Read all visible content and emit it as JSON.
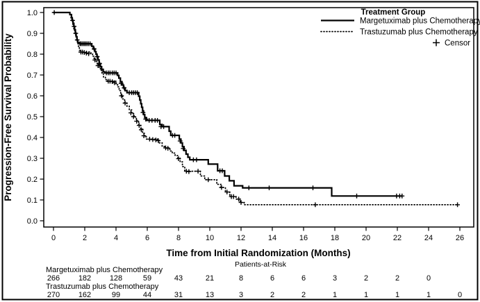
{
  "figure": {
    "background": "#ffffff",
    "line_color": "#000000",
    "border_color": "#000000"
  },
  "chart_data": {
    "type": "line",
    "subtype": "kaplan-meier-step",
    "title": "",
    "xlabel": "Time from Initial Randomization (Months)",
    "ylabel": "Progression-Free Survival Probability",
    "xlim": [
      0,
      26
    ],
    "ylim": [
      0.0,
      1.0
    ],
    "xticks": [
      0,
      2,
      4,
      6,
      8,
      10,
      12,
      14,
      16,
      18,
      20,
      22,
      24,
      26
    ],
    "ytick_labels": [
      "0.0",
      "0.1",
      "0.2",
      "0.3",
      "0.4",
      "0.5",
      "0.6",
      "0.7",
      "0.8",
      "0.9",
      "1.0"
    ],
    "grid": "off",
    "legend": {
      "position": "top-right",
      "title": "Treatment Group",
      "entries": [
        {
          "label": "Margetuximab plus Chemotherapy",
          "style": "solid"
        },
        {
          "label": "Trastuzumab plus Chemotherapy",
          "style": "dotted"
        }
      ],
      "censor_symbol": "+",
      "censor_label": "Censor"
    },
    "series": [
      {
        "name": "Margetuximab plus Chemotherapy",
        "style": "solid",
        "color": "#000000",
        "end_month": 22.3,
        "steps": [
          [
            0,
            1.0
          ],
          [
            1.05,
            0.99
          ],
          [
            1.15,
            0.975
          ],
          [
            1.2,
            0.962
          ],
          [
            1.25,
            0.948
          ],
          [
            1.3,
            0.933
          ],
          [
            1.35,
            0.917
          ],
          [
            1.4,
            0.9
          ],
          [
            1.45,
            0.884
          ],
          [
            1.5,
            0.868
          ],
          [
            1.55,
            0.856
          ],
          [
            1.62,
            0.85
          ],
          [
            2.45,
            0.838
          ],
          [
            2.55,
            0.825
          ],
          [
            2.65,
            0.812
          ],
          [
            2.72,
            0.8
          ],
          [
            2.78,
            0.788
          ],
          [
            2.85,
            0.772
          ],
          [
            2.92,
            0.755
          ],
          [
            3.0,
            0.74
          ],
          [
            3.08,
            0.727
          ],
          [
            3.18,
            0.715
          ],
          [
            3.28,
            0.71
          ],
          [
            4.1,
            0.698
          ],
          [
            4.18,
            0.685
          ],
          [
            4.28,
            0.668
          ],
          [
            4.38,
            0.652
          ],
          [
            4.48,
            0.638
          ],
          [
            4.58,
            0.625
          ],
          [
            4.7,
            0.615
          ],
          [
            5.45,
            0.598
          ],
          [
            5.52,
            0.58
          ],
          [
            5.58,
            0.562
          ],
          [
            5.64,
            0.545
          ],
          [
            5.7,
            0.528
          ],
          [
            5.76,
            0.51
          ],
          [
            5.84,
            0.495
          ],
          [
            5.95,
            0.482
          ],
          [
            6.8,
            0.462
          ],
          [
            6.95,
            0.452
          ],
          [
            7.4,
            0.43
          ],
          [
            7.5,
            0.41
          ],
          [
            8.05,
            0.392
          ],
          [
            8.15,
            0.374
          ],
          [
            8.25,
            0.356
          ],
          [
            8.35,
            0.338
          ],
          [
            8.48,
            0.32
          ],
          [
            8.6,
            0.305
          ],
          [
            8.72,
            0.293
          ],
          [
            9.9,
            0.272
          ],
          [
            10.5,
            0.24
          ],
          [
            10.95,
            0.215
          ],
          [
            11.25,
            0.192
          ],
          [
            11.55,
            0.168
          ],
          [
            12.1,
            0.158
          ],
          [
            17.8,
            0.119
          ]
        ],
        "censors": [
          [
            0.05,
            1.0
          ],
          [
            1.22,
            0.962
          ],
          [
            1.32,
            0.933
          ],
          [
            1.42,
            0.9
          ],
          [
            1.52,
            0.868
          ],
          [
            1.7,
            0.85
          ],
          [
            1.78,
            0.85
          ],
          [
            1.87,
            0.85
          ],
          [
            1.96,
            0.85
          ],
          [
            2.05,
            0.85
          ],
          [
            2.14,
            0.85
          ],
          [
            2.24,
            0.85
          ],
          [
            2.34,
            0.85
          ],
          [
            2.6,
            0.825
          ],
          [
            2.8,
            0.788
          ],
          [
            2.95,
            0.755
          ],
          [
            3.38,
            0.71
          ],
          [
            3.5,
            0.71
          ],
          [
            3.62,
            0.71
          ],
          [
            3.76,
            0.71
          ],
          [
            3.88,
            0.71
          ],
          [
            4.0,
            0.71
          ],
          [
            4.33,
            0.66
          ],
          [
            4.52,
            0.638
          ],
          [
            4.85,
            0.615
          ],
          [
            5.0,
            0.615
          ],
          [
            5.12,
            0.615
          ],
          [
            5.24,
            0.615
          ],
          [
            5.36,
            0.615
          ],
          [
            5.73,
            0.52
          ],
          [
            5.9,
            0.488
          ],
          [
            6.12,
            0.482
          ],
          [
            6.3,
            0.482
          ],
          [
            6.5,
            0.482
          ],
          [
            6.65,
            0.482
          ],
          [
            6.88,
            0.452
          ],
          [
            7.05,
            0.452
          ],
          [
            7.62,
            0.41
          ],
          [
            7.76,
            0.41
          ],
          [
            8.1,
            0.383
          ],
          [
            8.3,
            0.347
          ],
          [
            8.95,
            0.293
          ],
          [
            9.15,
            0.293
          ],
          [
            10.65,
            0.24
          ],
          [
            10.8,
            0.24
          ],
          [
            12.5,
            0.158
          ],
          [
            13.8,
            0.158
          ],
          [
            16.6,
            0.158
          ],
          [
            19.4,
            0.119
          ],
          [
            21.95,
            0.119
          ],
          [
            22.15,
            0.119
          ],
          [
            22.3,
            0.119
          ]
        ]
      },
      {
        "name": "Trastuzumab plus Chemotherapy",
        "style": "dotted",
        "color": "#000000",
        "end_month": 25.85,
        "steps": [
          [
            0,
            1.0
          ],
          [
            1.05,
            0.99
          ],
          [
            1.12,
            0.975
          ],
          [
            1.18,
            0.958
          ],
          [
            1.24,
            0.94
          ],
          [
            1.3,
            0.922
          ],
          [
            1.36,
            0.904
          ],
          [
            1.42,
            0.886
          ],
          [
            1.48,
            0.868
          ],
          [
            1.54,
            0.85
          ],
          [
            1.6,
            0.833
          ],
          [
            1.66,
            0.818
          ],
          [
            1.72,
            0.81
          ],
          [
            2.4,
            0.8
          ],
          [
            2.5,
            0.79
          ],
          [
            2.6,
            0.778
          ],
          [
            2.7,
            0.765
          ],
          [
            2.8,
            0.752
          ],
          [
            2.9,
            0.738
          ],
          [
            3.0,
            0.722
          ],
          [
            3.1,
            0.705
          ],
          [
            3.2,
            0.69
          ],
          [
            3.32,
            0.678
          ],
          [
            3.45,
            0.67
          ],
          [
            4.0,
            0.658
          ],
          [
            4.1,
            0.643
          ],
          [
            4.2,
            0.625
          ],
          [
            4.3,
            0.605
          ],
          [
            4.42,
            0.585
          ],
          [
            4.55,
            0.567
          ],
          [
            4.7,
            0.55
          ],
          [
            4.85,
            0.532
          ],
          [
            5.0,
            0.515
          ],
          [
            5.15,
            0.498
          ],
          [
            5.3,
            0.48
          ],
          [
            5.45,
            0.46
          ],
          [
            5.58,
            0.44
          ],
          [
            5.7,
            0.42
          ],
          [
            5.82,
            0.403
          ],
          [
            5.95,
            0.392
          ],
          [
            6.75,
            0.374
          ],
          [
            6.95,
            0.357
          ],
          [
            7.1,
            0.35
          ],
          [
            7.45,
            0.335
          ],
          [
            7.6,
            0.325
          ],
          [
            7.78,
            0.313
          ],
          [
            7.95,
            0.3
          ],
          [
            8.1,
            0.283
          ],
          [
            8.25,
            0.26
          ],
          [
            8.4,
            0.238
          ],
          [
            9.4,
            0.215
          ],
          [
            9.68,
            0.197
          ],
          [
            10.45,
            0.175
          ],
          [
            10.7,
            0.16
          ],
          [
            11.0,
            0.138
          ],
          [
            11.28,
            0.116
          ],
          [
            11.68,
            0.104
          ],
          [
            11.95,
            0.088
          ],
          [
            12.2,
            0.077
          ]
        ],
        "censors": [
          [
            1.75,
            0.81
          ],
          [
            1.85,
            0.81
          ],
          [
            1.97,
            0.808
          ],
          [
            2.1,
            0.805
          ],
          [
            2.25,
            0.802
          ],
          [
            2.65,
            0.772
          ],
          [
            2.85,
            0.745
          ],
          [
            3.5,
            0.67
          ],
          [
            3.62,
            0.67
          ],
          [
            3.76,
            0.668
          ],
          [
            3.9,
            0.663
          ],
          [
            4.35,
            0.6
          ],
          [
            4.58,
            0.565
          ],
          [
            4.95,
            0.518
          ],
          [
            5.12,
            0.5
          ],
          [
            5.32,
            0.478
          ],
          [
            5.48,
            0.458
          ],
          [
            5.62,
            0.437
          ],
          [
            5.78,
            0.408
          ],
          [
            6.15,
            0.392
          ],
          [
            6.35,
            0.39
          ],
          [
            6.55,
            0.388
          ],
          [
            6.7,
            0.385
          ],
          [
            7.18,
            0.35
          ],
          [
            7.32,
            0.348
          ],
          [
            8.0,
            0.298
          ],
          [
            8.5,
            0.238
          ],
          [
            8.66,
            0.236
          ],
          [
            9.25,
            0.238
          ],
          [
            9.9,
            0.197
          ],
          [
            10.75,
            0.16
          ],
          [
            11.1,
            0.138
          ],
          [
            11.38,
            0.116
          ],
          [
            11.52,
            0.116
          ],
          [
            11.85,
            0.104
          ],
          [
            12.0,
            0.088
          ],
          [
            16.75,
            0.077
          ],
          [
            25.85,
            0.077
          ]
        ]
      }
    ],
    "risk_table": {
      "title": "Patients-at-Risk",
      "rows": [
        {
          "label": "Margetuximab plus Chemotherapy",
          "times": [
            0,
            2,
            4,
            6,
            8,
            10,
            12,
            14,
            16,
            18,
            20,
            22,
            24
          ],
          "counts": [
            266,
            182,
            128,
            59,
            43,
            21,
            8,
            6,
            6,
            3,
            2,
            2,
            0
          ]
        },
        {
          "label": "Trastuzumab plus Chemotherapy",
          "times": [
            0,
            2,
            4,
            6,
            8,
            10,
            12,
            14,
            16,
            18,
            20,
            22,
            24,
            26
          ],
          "counts": [
            270,
            162,
            99,
            44,
            31,
            13,
            3,
            2,
            2,
            1,
            1,
            1,
            1,
            0
          ]
        }
      ]
    }
  }
}
